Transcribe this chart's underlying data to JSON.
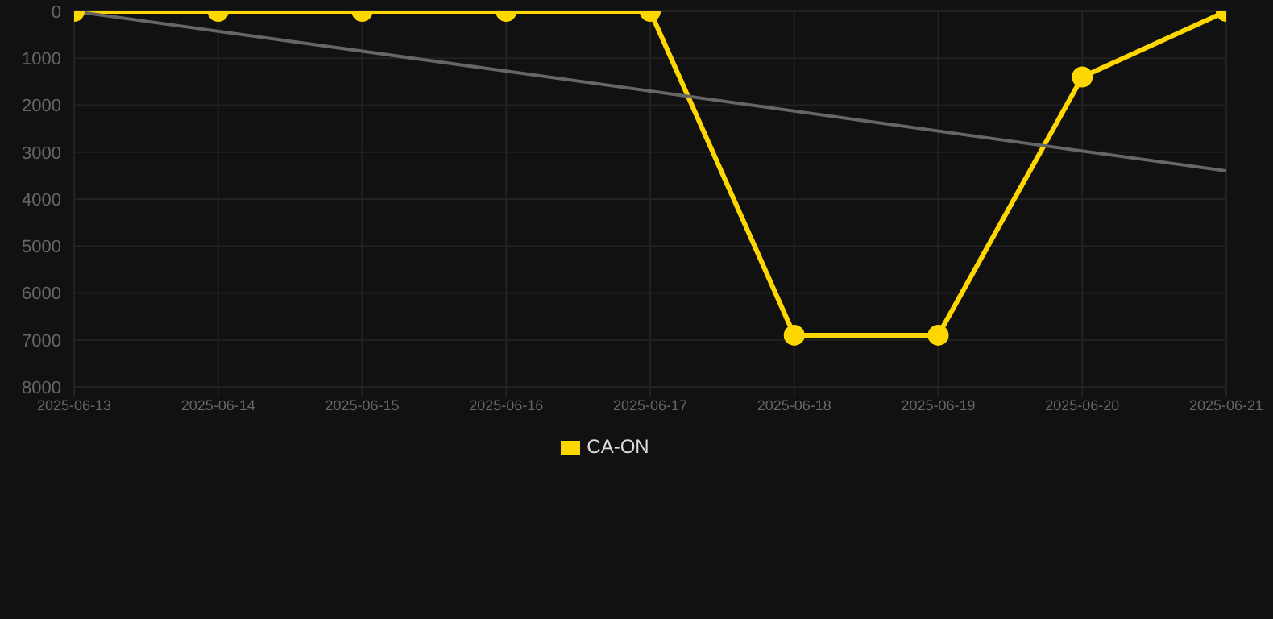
{
  "chart_data": {
    "type": "line",
    "x": [
      "2025-06-13",
      "2025-06-14",
      "2025-06-15",
      "2025-06-16",
      "2025-06-17",
      "2025-06-18",
      "2025-06-19",
      "2025-06-20",
      "2025-06-21"
    ],
    "series": [
      {
        "name": "CA-ON",
        "color": "#ffd700",
        "marker": "circle",
        "values": [
          0,
          0,
          0,
          0,
          0,
          6900,
          6900,
          1400,
          0
        ]
      },
      {
        "color": "#666666",
        "marker": "none",
        "x": [
          "2025-06-13",
          "2025-06-21"
        ],
        "values": [
          0,
          3400
        ]
      }
    ],
    "xlim": [
      "2025-06-13",
      "2025-06-21"
    ],
    "xticks": [
      "2025-06-13",
      "2025-06-14",
      "2025-06-15",
      "2025-06-16",
      "2025-06-17",
      "2025-06-18",
      "2025-06-19",
      "2025-06-20",
      "2025-06-21"
    ],
    "ylim": [
      8000,
      0
    ],
    "yticks": [
      0,
      1000,
      2000,
      3000,
      4000,
      5000,
      6000,
      7000,
      8000
    ],
    "grid": true,
    "legend": "bottom"
  }
}
